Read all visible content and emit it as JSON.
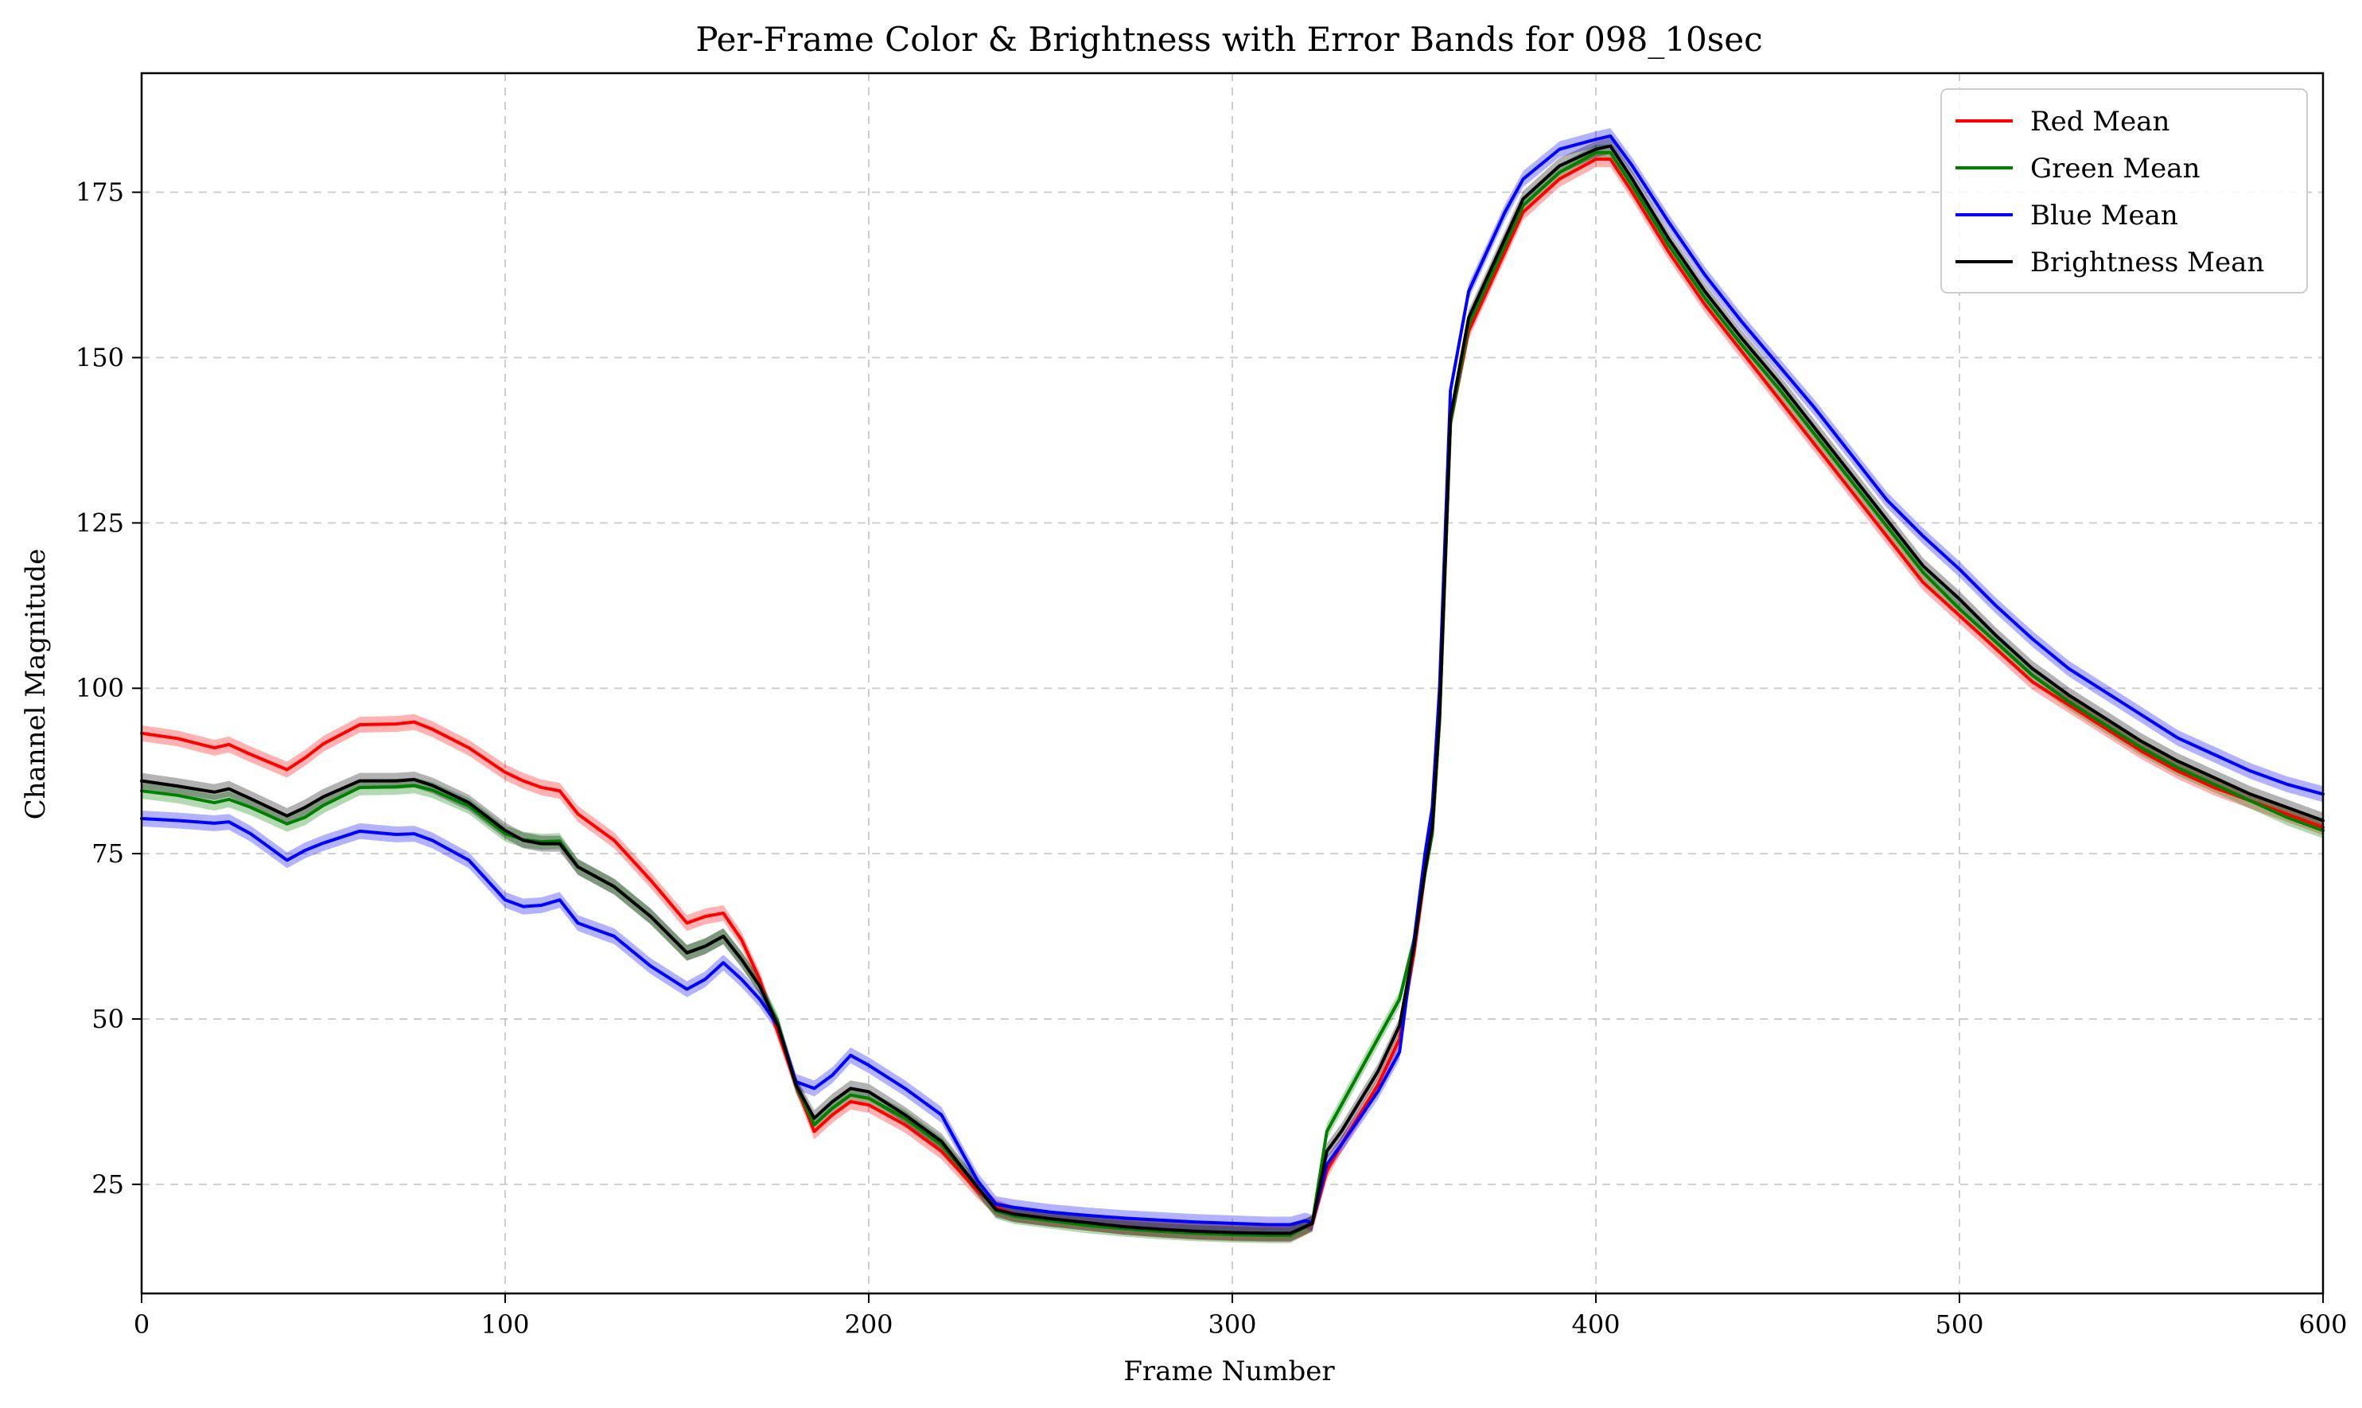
{
  "chart_data": {
    "type": "line",
    "title": "Per-Frame Color & Brightness with Error Bands for 098_10sec",
    "xlabel": "Frame Number",
    "ylabel": "Channel Magnitude",
    "xlim": [
      0,
      600
    ],
    "ylim": [
      8.5,
      193
    ],
    "xticks": [
      0,
      100,
      200,
      300,
      400,
      500,
      600
    ],
    "yticks": [
      25,
      50,
      75,
      100,
      125,
      150,
      175
    ],
    "grid": true,
    "legend_position": "top-right",
    "error_band": 1.2,
    "x": [
      0,
      10,
      20,
      24,
      30,
      40,
      45,
      50,
      60,
      70,
      75,
      80,
      90,
      100,
      105,
      110,
      115,
      120,
      130,
      140,
      150,
      155,
      160,
      165,
      170,
      175,
      180,
      185,
      190,
      195,
      200,
      210,
      220,
      230,
      235,
      240,
      250,
      260,
      270,
      280,
      290,
      300,
      310,
      316,
      320,
      322,
      326,
      330,
      340,
      346,
      350,
      353,
      355,
      357,
      360,
      365,
      370,
      375,
      380,
      390,
      400,
      404,
      410,
      420,
      430,
      440,
      450,
      460,
      470,
      480,
      490,
      500,
      510,
      520,
      530,
      540,
      550,
      560,
      570,
      580,
      590,
      600
    ],
    "series": [
      {
        "name": "Red Mean",
        "color": "#ff0000",
        "values": [
          93.2,
          92.4,
          91.0,
          91.5,
          90.0,
          87.7,
          89.5,
          91.6,
          94.5,
          94.6,
          94.9,
          93.8,
          91.0,
          87.3,
          86.0,
          85.0,
          84.5,
          81.0,
          77.0,
          71.0,
          64.5,
          65.5,
          66.0,
          62.0,
          56.0,
          48.0,
          40.0,
          33.0,
          35.5,
          37.5,
          37.0,
          34.0,
          30.0,
          24.0,
          21.5,
          20.5,
          19.8,
          19.2,
          18.6,
          18.2,
          17.8,
          17.6,
          17.5,
          17.5,
          18.5,
          19.0,
          27.0,
          31.0,
          40.0,
          47.0,
          60.0,
          72.0,
          78.0,
          95.0,
          140.0,
          154.0,
          160.0,
          166.0,
          172.0,
          177.0,
          180.0,
          180.0,
          175.0,
          166.0,
          158.0,
          151.0,
          144.0,
          137.0,
          130.0,
          123.0,
          116.0,
          111.0,
          106.0,
          101.0,
          97.5,
          94.0,
          90.5,
          87.5,
          85.0,
          83.0,
          81.0,
          79.0
        ]
      },
      {
        "name": "Green Mean",
        "color": "#008000",
        "values": [
          84.5,
          83.8,
          82.7,
          83.2,
          82.0,
          79.5,
          80.5,
          82.3,
          85.0,
          85.1,
          85.3,
          84.6,
          82.2,
          78.0,
          77.1,
          76.8,
          76.9,
          73.0,
          70.0,
          65.5,
          60.0,
          61.0,
          62.5,
          59.0,
          55.0,
          49.5,
          40.0,
          34.0,
          36.5,
          38.5,
          38.0,
          35.0,
          31.0,
          24.5,
          21.0,
          20.2,
          19.5,
          18.8,
          18.3,
          17.9,
          17.6,
          17.4,
          17.3,
          17.3,
          18.5,
          19.2,
          33.0,
          37.0,
          47.0,
          53.0,
          62.0,
          72.0,
          78.0,
          95.0,
          140.0,
          155.0,
          161.0,
          167.0,
          173.0,
          178.0,
          181.0,
          181.0,
          176.0,
          167.0,
          159.0,
          152.0,
          145.5,
          138.5,
          131.5,
          124.5,
          117.5,
          112.0,
          107.0,
          102.0,
          98.0,
          94.5,
          91.0,
          88.0,
          85.5,
          83.0,
          80.5,
          78.5
        ]
      },
      {
        "name": "Blue Mean",
        "color": "#0000ff",
        "values": [
          80.3,
          80.0,
          79.6,
          79.8,
          78.0,
          74.0,
          75.5,
          76.6,
          78.4,
          77.9,
          78.0,
          77.0,
          74.0,
          68.0,
          67.0,
          67.2,
          68.0,
          64.5,
          62.5,
          58.0,
          54.5,
          56.0,
          58.5,
          56.0,
          53.0,
          49.0,
          40.5,
          39.5,
          41.5,
          44.5,
          43.0,
          39.5,
          35.5,
          25.5,
          22.0,
          21.5,
          20.8,
          20.3,
          19.9,
          19.6,
          19.3,
          19.1,
          18.9,
          18.9,
          19.5,
          19.2,
          28.0,
          31.0,
          39.0,
          45.0,
          62.0,
          75.0,
          82.0,
          100.0,
          145.0,
          160.0,
          166.0,
          172.0,
          177.0,
          181.5,
          183.0,
          183.5,
          179.0,
          170.5,
          162.5,
          155.5,
          149.0,
          142.5,
          135.5,
          128.5,
          123.0,
          118.0,
          112.5,
          107.5,
          103.0,
          99.5,
          96.0,
          92.5,
          90.0,
          87.5,
          85.5,
          84.0
        ]
      },
      {
        "name": "Brightness Mean",
        "color": "#000000",
        "values": [
          86.0,
          85.2,
          84.3,
          84.8,
          83.3,
          80.7,
          82.0,
          83.6,
          86.0,
          86.0,
          86.2,
          85.3,
          82.7,
          78.5,
          77.0,
          76.5,
          76.5,
          73.0,
          70.0,
          65.5,
          60.0,
          61.0,
          62.5,
          59.0,
          55.0,
          49.0,
          40.0,
          35.0,
          37.5,
          39.5,
          39.0,
          35.5,
          31.5,
          24.5,
          21.2,
          20.5,
          19.8,
          19.2,
          18.6,
          18.2,
          17.9,
          17.7,
          17.6,
          17.6,
          18.6,
          19.1,
          30.0,
          33.0,
          42.0,
          49.0,
          61.0,
          72.5,
          79.0,
          96.0,
          141.0,
          156.0,
          162.0,
          168.0,
          174.0,
          179.0,
          181.5,
          182.0,
          177.0,
          168.0,
          160.0,
          153.0,
          146.5,
          139.5,
          132.5,
          125.5,
          118.5,
          113.5,
          108.0,
          103.0,
          99.0,
          95.5,
          92.0,
          89.0,
          86.5,
          84.0,
          82.0,
          80.0
        ]
      }
    ]
  }
}
